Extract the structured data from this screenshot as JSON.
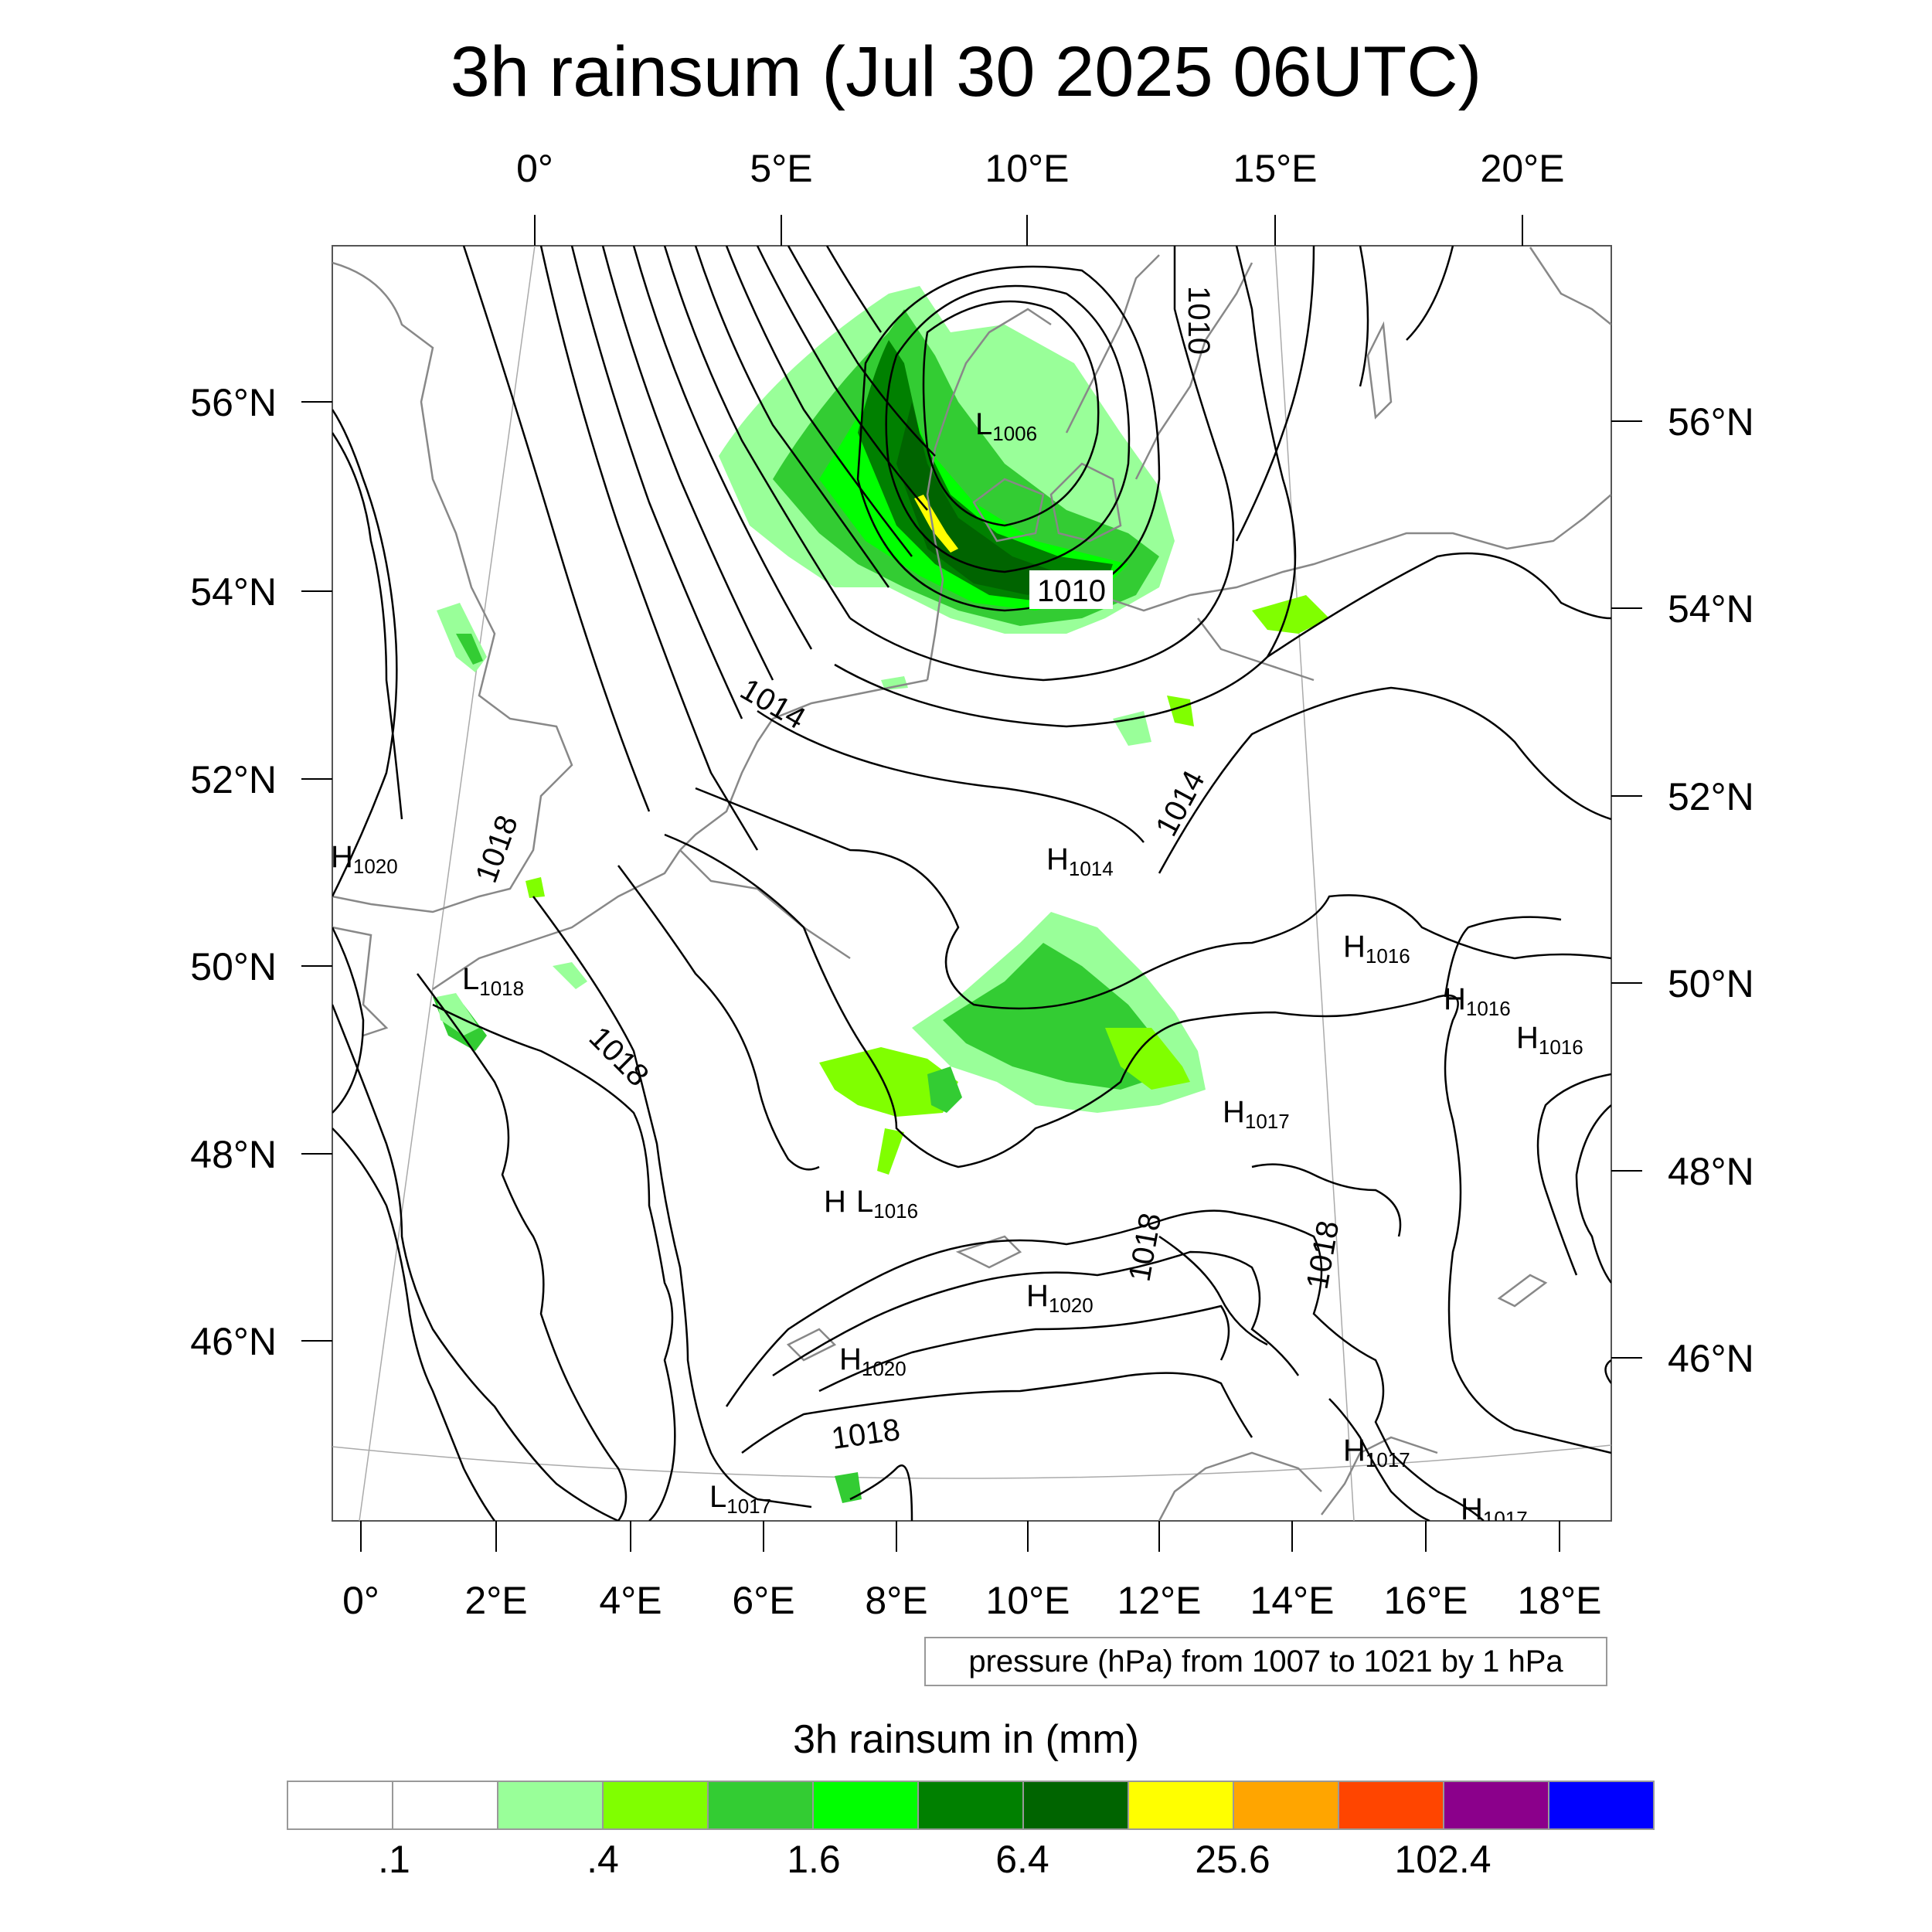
{
  "title": "3h rainsum (Jul 30 2025 06UTC)",
  "top_lon_ticks": [
    "0°",
    "5°E",
    "10°E",
    "15°E",
    "20°E"
  ],
  "bottom_lon_ticks": [
    "0°",
    "2°E",
    "4°E",
    "6°E",
    "8°E",
    "10°E",
    "12°E",
    "14°E",
    "16°E",
    "18°E"
  ],
  "left_lat_ticks": [
    "56°N",
    "54°N",
    "52°N",
    "50°N",
    "48°N",
    "46°N"
  ],
  "right_lat_ticks": [
    "56°N",
    "54°N",
    "52°N",
    "50°N",
    "48°N",
    "46°N"
  ],
  "pressure_info": "pressure (hPa) from 1007 to 1021 by 1 hPa",
  "colorbar": {
    "title": "3h rainsum in (mm)",
    "colors": [
      "#ffffff",
      "#ffffff",
      "#99ff99",
      "#80ff00",
      "#33cc33",
      "#00ff00",
      "#008000",
      "#006400",
      "#ffff00",
      "#ffa500",
      "#ff4500",
      "#8b008b",
      "#0000ff"
    ],
    "labels": [
      ".1",
      ".4",
      "1.6",
      "6.4",
      "25.6",
      "102.4"
    ]
  },
  "pressure_centers": [
    {
      "type": "L",
      "value": "1006"
    },
    {
      "type": "H",
      "value": "1020"
    },
    {
      "type": "H",
      "value": "1014"
    },
    {
      "type": "L",
      "value": "1018"
    },
    {
      "type": "H",
      "value": "1016"
    },
    {
      "type": "H",
      "value": "1016"
    },
    {
      "type": "H",
      "value": "1016"
    },
    {
      "type": "H",
      "value": "1017"
    },
    {
      "type": "H",
      "value": ""
    },
    {
      "type": "L",
      "value": "1016"
    },
    {
      "type": "H",
      "value": "1020"
    },
    {
      "type": "H",
      "value": "1020"
    },
    {
      "type": "H",
      "value": "1017"
    },
    {
      "type": "L",
      "value": "1017"
    },
    {
      "type": "H",
      "value": "1017"
    }
  ],
  "isobar_labels": [
    "1010",
    "1010",
    "1014",
    "1014",
    "1018",
    "1018",
    "1018",
    "1018",
    "1018"
  ]
}
